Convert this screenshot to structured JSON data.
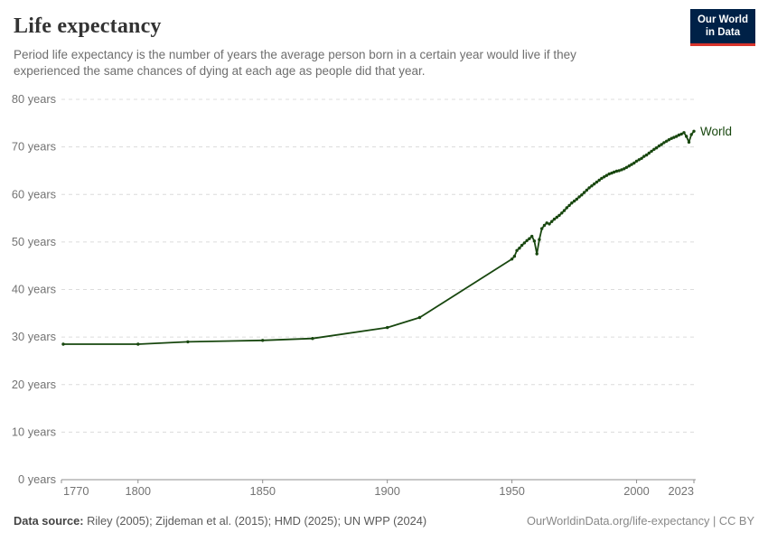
{
  "header": {
    "title": "Life expectancy",
    "subtitle": "Period life expectancy is the number of years the average person born in a certain year would live if they experienced the same chances of dying at each age as people did that year.",
    "logo": {
      "line1": "Our World",
      "line2": "in Data",
      "bg_color": "#002147",
      "accent_color": "#d8342c"
    }
  },
  "chart_data": {
    "type": "line",
    "title": "Life expectancy",
    "xlabel": "",
    "ylabel": "",
    "xlim": [
      1770,
      2023
    ],
    "ylim": [
      0,
      80
    ],
    "grid": "horizontal-dashed",
    "grid_color": "#dcdcdc",
    "axis_color": "#8f8f8f",
    "x_ticks": [
      1770,
      1800,
      1850,
      1900,
      1950,
      2000,
      2023
    ],
    "y_ticks": [
      0,
      10,
      20,
      30,
      40,
      50,
      60,
      70,
      80
    ],
    "y_tick_suffix": " years",
    "legend_position": "end-of-line",
    "series": [
      {
        "name": "World",
        "color": "#18470F",
        "points": [
          [
            1770,
            28.5
          ],
          [
            1800,
            28.5
          ],
          [
            1820,
            29.0
          ],
          [
            1850,
            29.3
          ],
          [
            1870,
            29.7
          ],
          [
            1900,
            32.0
          ],
          [
            1913,
            34.1
          ],
          [
            1950,
            46.4
          ],
          [
            1951,
            47.0
          ],
          [
            1952,
            48.2
          ],
          [
            1953,
            48.7
          ],
          [
            1954,
            49.3
          ],
          [
            1955,
            49.8
          ],
          [
            1956,
            50.3
          ],
          [
            1957,
            50.7
          ],
          [
            1958,
            51.2
          ],
          [
            1959,
            50.2
          ],
          [
            1960,
            47.5
          ],
          [
            1961,
            50.5
          ],
          [
            1962,
            52.8
          ],
          [
            1963,
            53.5
          ],
          [
            1964,
            54.0
          ],
          [
            1965,
            53.8
          ],
          [
            1966,
            54.3
          ],
          [
            1967,
            54.8
          ],
          [
            1968,
            55.2
          ],
          [
            1969,
            55.6
          ],
          [
            1970,
            56.1
          ],
          [
            1971,
            56.6
          ],
          [
            1972,
            57.2
          ],
          [
            1973,
            57.7
          ],
          [
            1974,
            58.2
          ],
          [
            1975,
            58.6
          ],
          [
            1976,
            59.0
          ],
          [
            1977,
            59.5
          ],
          [
            1978,
            59.9
          ],
          [
            1979,
            60.4
          ],
          [
            1980,
            60.9
          ],
          [
            1981,
            61.4
          ],
          [
            1982,
            61.8
          ],
          [
            1983,
            62.2
          ],
          [
            1984,
            62.6
          ],
          [
            1985,
            63.0
          ],
          [
            1986,
            63.4
          ],
          [
            1987,
            63.7
          ],
          [
            1988,
            64.0
          ],
          [
            1989,
            64.3
          ],
          [
            1990,
            64.5
          ],
          [
            1991,
            64.7
          ],
          [
            1992,
            64.9
          ],
          [
            1993,
            65.0
          ],
          [
            1994,
            65.2
          ],
          [
            1995,
            65.4
          ],
          [
            1996,
            65.7
          ],
          [
            1997,
            66.0
          ],
          [
            1998,
            66.3
          ],
          [
            1999,
            66.6
          ],
          [
            2000,
            67.0
          ],
          [
            2001,
            67.3
          ],
          [
            2002,
            67.6
          ],
          [
            2003,
            68.0
          ],
          [
            2004,
            68.3
          ],
          [
            2005,
            68.7
          ],
          [
            2006,
            69.1
          ],
          [
            2007,
            69.5
          ],
          [
            2008,
            69.8
          ],
          [
            2009,
            70.2
          ],
          [
            2010,
            70.5
          ],
          [
            2011,
            70.9
          ],
          [
            2012,
            71.2
          ],
          [
            2013,
            71.5
          ],
          [
            2014,
            71.8
          ],
          [
            2015,
            72.0
          ],
          [
            2016,
            72.2
          ],
          [
            2017,
            72.5
          ],
          [
            2018,
            72.7
          ],
          [
            2019,
            73.0
          ],
          [
            2020,
            72.2
          ],
          [
            2021,
            71.0
          ],
          [
            2022,
            72.6
          ],
          [
            2023,
            73.3
          ]
        ]
      }
    ]
  },
  "footer": {
    "source_label": "Data source:",
    "source_text": " Riley (2005); Zijdeman et al. (2015); HMD (2025); UN WPP (2024)",
    "right_text": "OurWorldinData.org/life-expectancy | CC BY"
  }
}
